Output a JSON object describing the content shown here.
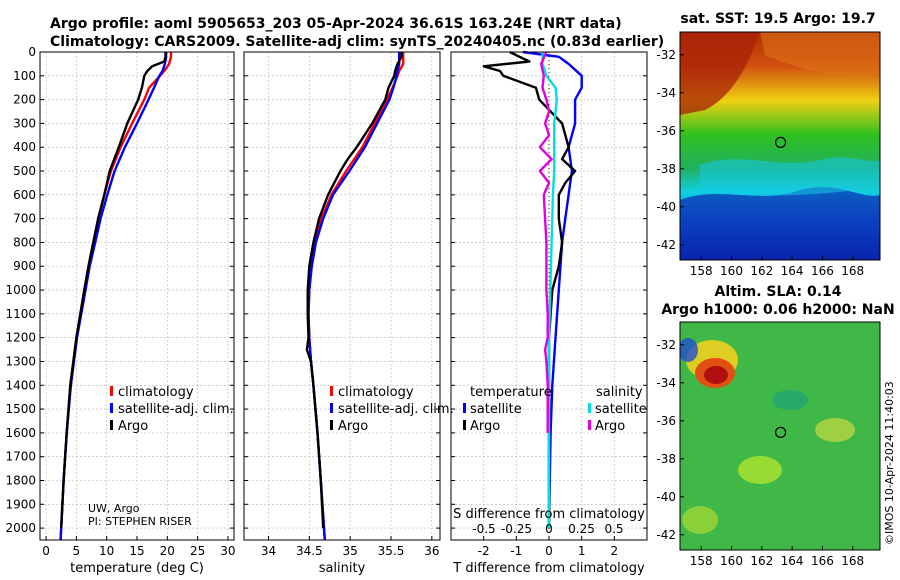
{
  "header": {
    "line1": "Argo profile: aoml 5905653_203 05-Apr-2024 36.61S 163.24E (NRT data)",
    "line2": "Climatology: CARS2009. Satellite-adj clim: synTS_20240405.nc (0.83d earlier)"
  },
  "colors": {
    "climatology": "#ff0000",
    "satellite": "#0000ff",
    "argo": "#000000",
    "sat_t": "#00e0e0",
    "sat_s": "#e000e0"
  },
  "chart_data": [
    {
      "type": "line",
      "id": "temperature",
      "xlabel": "temperature (deg C)",
      "ylabel": "",
      "xlim": [
        -1,
        31
      ],
      "ylim": [
        0,
        2050
      ],
      "xticks": [
        0,
        5,
        10,
        15,
        20,
        25,
        30
      ],
      "yticks": [
        0,
        100,
        200,
        300,
        400,
        500,
        600,
        700,
        800,
        900,
        1000,
        1100,
        1200,
        1300,
        1400,
        1500,
        1600,
        1700,
        1800,
        1900,
        2000
      ],
      "legend": [
        "climatology",
        "satellite-adj. clim.",
        "Argo"
      ],
      "annotation": [
        "UW, Argo",
        "PI: STEPHEN RISER"
      ],
      "series": [
        {
          "name": "climatology",
          "depth": [
            0,
            20,
            50,
            80,
            100,
            150,
            200,
            300,
            400,
            500,
            600,
            700,
            800,
            900,
            1000,
            1200,
            1400,
            1600,
            1800,
            2000,
            2050
          ],
          "values": [
            20.6,
            20.6,
            20.3,
            19.5,
            18.8,
            17.0,
            16.2,
            14.2,
            12.3,
            10.7,
            9.6,
            8.6,
            7.8,
            7.0,
            6.3,
            5.0,
            4.0,
            3.4,
            2.9,
            2.5,
            2.4
          ]
        },
        {
          "name": "satellite-adj. clim.",
          "depth": [
            0,
            20,
            50,
            80,
            100,
            150,
            200,
            300,
            400,
            500,
            600,
            700,
            800,
            900,
            1000,
            1200,
            1400,
            1600,
            1800,
            2000,
            2050
          ],
          "values": [
            19.8,
            19.8,
            19.6,
            19.2,
            18.7,
            17.8,
            16.9,
            15.0,
            13.0,
            11.3,
            10.1,
            9.0,
            8.1,
            7.2,
            6.5,
            5.1,
            4.1,
            3.4,
            2.9,
            2.5,
            2.4
          ]
        },
        {
          "name": "Argo",
          "depth": [
            0,
            20,
            40,
            60,
            80,
            100,
            150,
            200,
            300,
            400,
            500,
            600,
            700,
            800,
            900,
            1000,
            1200,
            1400,
            1600,
            1800,
            2000
          ],
          "values": [
            19.7,
            19.7,
            19.5,
            17.5,
            16.7,
            16.2,
            15.8,
            15.2,
            13.4,
            12.0,
            10.5,
            9.6,
            8.6,
            7.8,
            7.0,
            6.3,
            5.0,
            4.0,
            3.4,
            2.9,
            2.5
          ]
        }
      ]
    },
    {
      "type": "line",
      "id": "salinity",
      "xlabel": "salinity",
      "xlim": [
        33.7,
        36.1
      ],
      "ylim": [
        0,
        2050
      ],
      "xticks": [
        34,
        34.5,
        35,
        35.5,
        36
      ],
      "xticklabels": [
        "34",
        "34.5",
        "35",
        "35.5",
        "36"
      ],
      "legend": [
        "climatology",
        "satellite-adj. clim.",
        "Argo"
      ],
      "series": [
        {
          "name": "climatology",
          "depth": [
            0,
            20,
            50,
            80,
            100,
            150,
            200,
            300,
            400,
            500,
            600,
            700,
            800,
            900,
            1000,
            1100,
            1200,
            1300,
            1400,
            1600,
            1800,
            2000,
            2050
          ],
          "values": [
            35.65,
            35.65,
            35.65,
            35.6,
            35.58,
            35.52,
            35.45,
            35.3,
            35.15,
            34.95,
            34.77,
            34.65,
            34.57,
            34.52,
            34.5,
            34.49,
            34.5,
            34.52,
            34.55,
            34.6,
            34.64,
            34.68,
            34.69
          ]
        },
        {
          "name": "satellite-adj. clim.",
          "depth": [
            0,
            20,
            50,
            80,
            100,
            150,
            200,
            300,
            400,
            500,
            600,
            700,
            800,
            900,
            1000,
            1100,
            1200,
            1300,
            1400,
            1600,
            1800,
            2000,
            2050
          ],
          "values": [
            35.6,
            35.6,
            35.6,
            35.58,
            35.57,
            35.53,
            35.48,
            35.33,
            35.18,
            34.99,
            34.79,
            34.67,
            34.58,
            34.53,
            34.5,
            34.49,
            34.5,
            34.52,
            34.55,
            34.6,
            34.64,
            34.68,
            34.69
          ]
        },
        {
          "name": "Argo",
          "depth": [
            0,
            20,
            50,
            80,
            100,
            150,
            200,
            300,
            400,
            450,
            500,
            600,
            700,
            800,
            900,
            1000,
            1100,
            1200,
            1250,
            1300,
            1400,
            1600,
            1800,
            2000
          ],
          "values": [
            35.63,
            35.63,
            35.58,
            35.55,
            35.54,
            35.47,
            35.43,
            35.27,
            35.08,
            34.97,
            34.88,
            34.73,
            34.62,
            34.55,
            34.5,
            34.48,
            34.48,
            34.49,
            34.47,
            34.52,
            34.55,
            34.6,
            34.64,
            34.67
          ]
        }
      ]
    },
    {
      "type": "line",
      "id": "difference",
      "xlabel": "T difference from climatology",
      "xlabel2": "S difference from climatology",
      "xlim": [
        -3,
        3
      ],
      "ylim": [
        0,
        2050
      ],
      "xticks": [
        -2,
        -1,
        0,
        1,
        2
      ],
      "xticklabels": [
        "-2",
        "-1",
        "0",
        "1",
        "2"
      ],
      "sticks": [
        -0.5,
        -0.25,
        0,
        0.25,
        0.5
      ],
      "sticklabels": [
        "-0.5",
        "-0.25",
        "0",
        "0.25",
        "0.5"
      ],
      "legend_titles": [
        "temperature",
        "salinity"
      ],
      "legend_t": [
        "satellite",
        "Argo"
      ],
      "legend_s": [
        "satellite",
        "Argo"
      ],
      "series": [
        {
          "name": "T satellite",
          "depth": [
            0,
            20,
            50,
            100,
            150,
            200,
            300,
            400,
            500,
            600,
            700,
            800,
            1000,
            1200,
            1400,
            1600,
            2000
          ],
          "values": [
            -0.8,
            0.3,
            0.6,
            1.0,
            1.0,
            0.8,
            0.8,
            0.6,
            0.7,
            0.6,
            0.5,
            0.4,
            0.3,
            0.2,
            0.1,
            0.05,
            0.0
          ]
        },
        {
          "name": "T Argo",
          "depth": [
            0,
            20,
            40,
            60,
            80,
            100,
            150,
            200,
            300,
            400,
            450,
            500,
            550,
            600,
            700,
            800,
            900,
            1000,
            1200,
            1400,
            1600,
            1800,
            2000
          ],
          "values": [
            -1.2,
            -0.9,
            -0.6,
            -2.0,
            -1.5,
            -1.4,
            -0.4,
            -0.3,
            0.4,
            0.6,
            0.4,
            0.8,
            0.5,
            0.3,
            0.3,
            0.4,
            0.3,
            0.1,
            0.0,
            0.0,
            0.0,
            0.0,
            0.0
          ]
        },
        {
          "name": "S satellite",
          "depth": [
            0,
            50,
            100,
            150,
            200,
            300,
            400,
            500,
            600,
            800,
            1000,
            1200,
            1400,
            1600,
            1800,
            2000
          ],
          "values": [
            -0.05,
            -0.05,
            -0.02,
            0.05,
            0.06,
            0.04,
            0.04,
            0.04,
            0.03,
            0.02,
            0.01,
            0.0,
            0.0,
            0.0,
            0.0,
            0.0
          ]
        },
        {
          "name": "S Argo",
          "depth": [
            0,
            50,
            100,
            150,
            200,
            250,
            300,
            350,
            400,
            450,
            500,
            550,
            600,
            700,
            800,
            900,
            1000,
            1100,
            1200,
            1250,
            1300,
            1400,
            1600
          ],
          "values": [
            -0.02,
            -0.06,
            -0.04,
            -0.05,
            -0.02,
            0.0,
            -0.03,
            0.0,
            -0.07,
            0.02,
            -0.07,
            0.0,
            -0.04,
            -0.03,
            -0.02,
            -0.02,
            -0.02,
            -0.01,
            -0.01,
            -0.03,
            -0.02,
            -0.01,
            -0.01
          ]
        }
      ]
    },
    {
      "type": "heatmap",
      "id": "sst_map",
      "title": "sat. SST: 19.5 Argo: 19.7",
      "xticks": [
        158,
        160,
        162,
        164,
        166,
        168
      ],
      "yticks": [
        -32,
        -34,
        -36,
        -38,
        -40,
        -42
      ],
      "xlim": [
        156.6,
        169.8
      ],
      "ylim": [
        -42.8,
        -30.8
      ],
      "marker": [
        163.24,
        -36.61
      ]
    },
    {
      "type": "heatmap",
      "id": "sla_map",
      "title1": "Altim. SLA: 0.14",
      "title2": "Argo h1000: 0.06 h2000: NaN",
      "xticks": [
        158,
        160,
        162,
        164,
        166,
        168
      ],
      "yticks": [
        -32,
        -34,
        -36,
        -38,
        -40,
        -42
      ],
      "xlim": [
        156.6,
        169.8
      ],
      "ylim": [
        -42.8,
        -30.8
      ],
      "marker": [
        163.24,
        -36.61
      ]
    }
  ],
  "credit": "©IMOS 10-Apr-2024 11:40:03"
}
